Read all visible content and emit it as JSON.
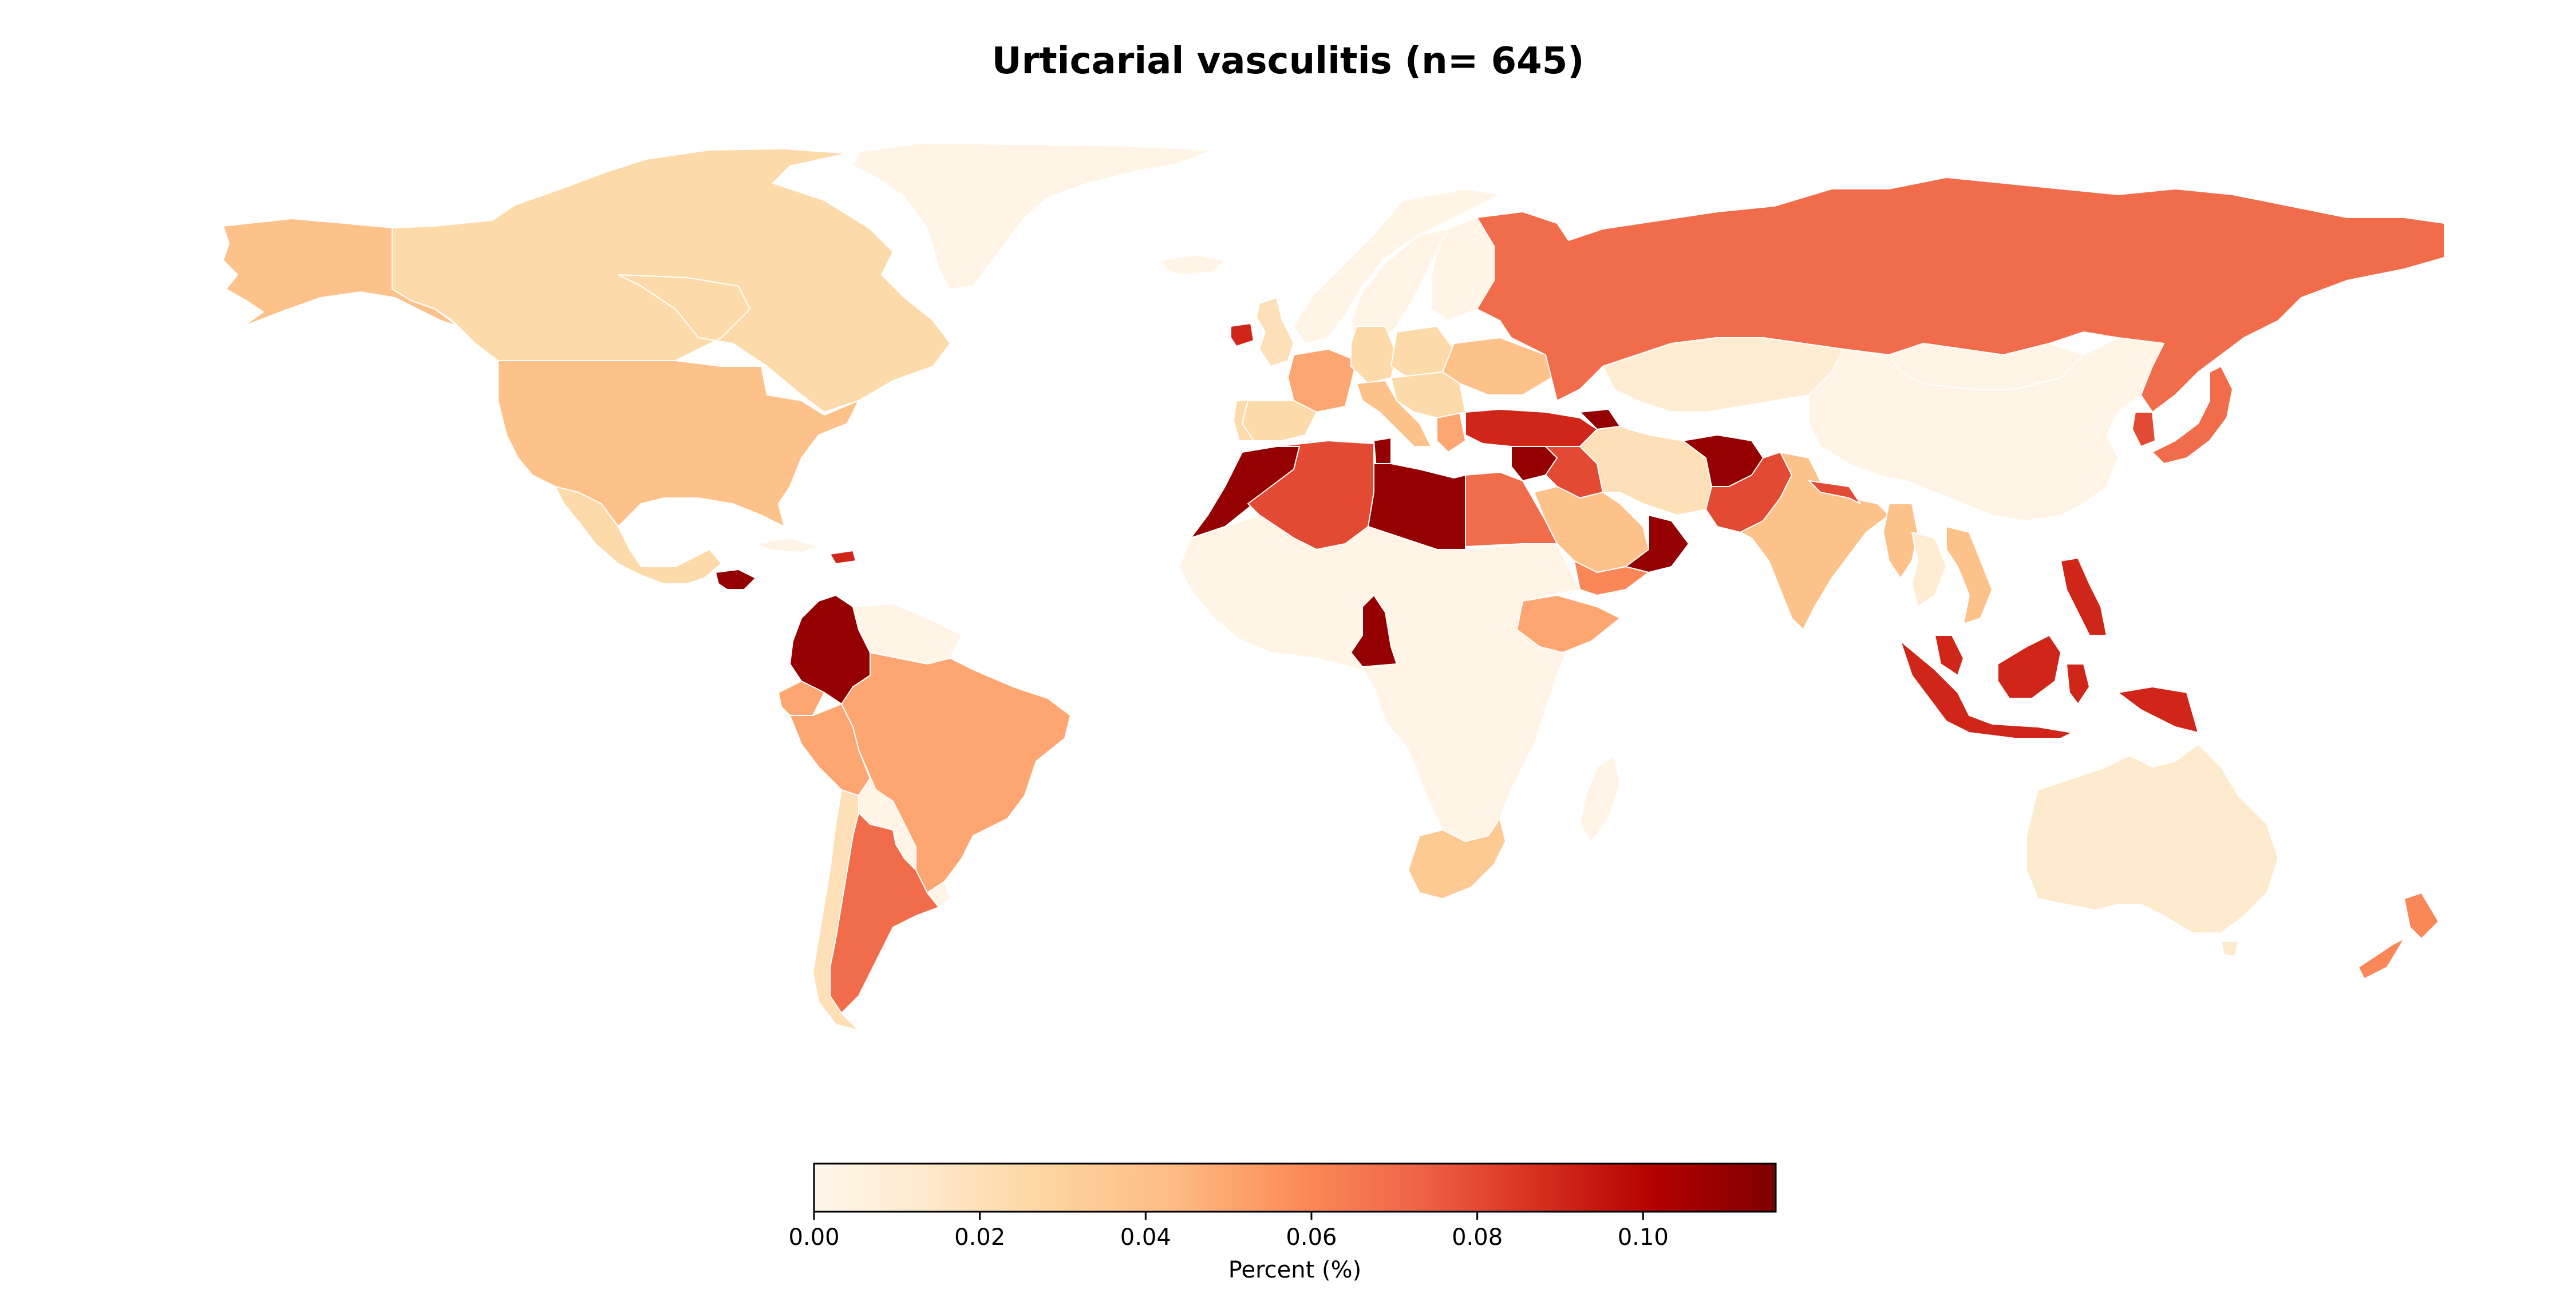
{
  "title": "Urticarial vasculitis (n= 645)",
  "colorbar": {
    "label": "Percent (%)",
    "cmap": "OrRd",
    "vmin": 0.0,
    "vmax": 0.116,
    "ticks": [
      {
        "value": 0.0,
        "label": "0.00"
      },
      {
        "value": 0.02,
        "label": "0.02"
      },
      {
        "value": 0.04,
        "label": "0.04"
      },
      {
        "value": 0.06,
        "label": "0.06"
      },
      {
        "value": 0.08,
        "label": "0.08"
      },
      {
        "value": 0.1,
        "label": "0.10"
      }
    ],
    "stops": [
      {
        "t": 0.0,
        "color": "#fff7ec"
      },
      {
        "t": 0.125,
        "color": "#fee8c8"
      },
      {
        "t": 0.25,
        "color": "#fdd49e"
      },
      {
        "t": 0.375,
        "color": "#fdbb84"
      },
      {
        "t": 0.5,
        "color": "#fc8d59"
      },
      {
        "t": 0.625,
        "color": "#ef6548"
      },
      {
        "t": 0.75,
        "color": "#d7301f"
      },
      {
        "t": 0.875,
        "color": "#b30000"
      },
      {
        "t": 1.0,
        "color": "#7f0000"
      }
    ]
  },
  "chart_data": {
    "type": "choropleth",
    "title": "Urticarial vasculitis (n= 645)",
    "value_label": "Percent (%)",
    "regions": [
      {
        "name": "Greenland",
        "value": 0.003
      },
      {
        "name": "Alaska",
        "value": 0.04
      },
      {
        "name": "Canada",
        "value": 0.025
      },
      {
        "name": "United States",
        "value": 0.04
      },
      {
        "name": "Mexico",
        "value": 0.025
      },
      {
        "name": "Guatemala",
        "value": 0.11
      },
      {
        "name": "Cuba",
        "value": 0.003
      },
      {
        "name": "Dominican Republic",
        "value": 0.09
      },
      {
        "name": "Colombia",
        "value": 0.11
      },
      {
        "name": "Venezuela",
        "value": 0.003
      },
      {
        "name": "Ecuador",
        "value": 0.05
      },
      {
        "name": "Peru",
        "value": 0.05
      },
      {
        "name": "Brazil",
        "value": 0.05
      },
      {
        "name": "Bolivia",
        "value": 0.003
      },
      {
        "name": "Paraguay",
        "value": 0.003
      },
      {
        "name": "Uruguay",
        "value": 0.003
      },
      {
        "name": "Chile",
        "value": 0.02
      },
      {
        "name": "Argentina",
        "value": 0.07
      },
      {
        "name": "Iceland",
        "value": 0.003
      },
      {
        "name": "Norway",
        "value": 0.003
      },
      {
        "name": "Sweden",
        "value": 0.003
      },
      {
        "name": "Finland",
        "value": 0.003
      },
      {
        "name": "Ireland",
        "value": 0.09
      },
      {
        "name": "United Kingdom",
        "value": 0.02
      },
      {
        "name": "France",
        "value": 0.05
      },
      {
        "name": "Spain",
        "value": 0.025
      },
      {
        "name": "Portugal",
        "value": 0.025
      },
      {
        "name": "Germany",
        "value": 0.025
      },
      {
        "name": "Poland",
        "value": 0.025
      },
      {
        "name": "Ukraine",
        "value": 0.04
      },
      {
        "name": "Italy",
        "value": 0.04
      },
      {
        "name": "Greece",
        "value": 0.05
      },
      {
        "name": "Turkey",
        "value": 0.09
      },
      {
        "name": "Russia",
        "value": 0.07
      },
      {
        "name": "Kazakhstan",
        "value": 0.01
      },
      {
        "name": "Mongolia",
        "value": 0.003
      },
      {
        "name": "China",
        "value": 0.003
      },
      {
        "name": "Japan",
        "value": 0.07
      },
      {
        "name": "South Korea",
        "value": 0.08
      },
      {
        "name": "Syria",
        "value": 0.11
      },
      {
        "name": "Iraq",
        "value": 0.08
      },
      {
        "name": "Azerbaijan",
        "value": 0.11
      },
      {
        "name": "Iran",
        "value": 0.02
      },
      {
        "name": "Afghanistan",
        "value": 0.11
      },
      {
        "name": "Pakistan",
        "value": 0.08
      },
      {
        "name": "India",
        "value": 0.04
      },
      {
        "name": "Nepal",
        "value": 0.08
      },
      {
        "name": "Saudi Arabia",
        "value": 0.04
      },
      {
        "name": "Oman",
        "value": 0.11
      },
      {
        "name": "Yemen",
        "value": 0.06
      },
      {
        "name": "Myanmar",
        "value": 0.04
      },
      {
        "name": "Thailand",
        "value": 0.01
      },
      {
        "name": "Vietnam",
        "value": 0.04
      },
      {
        "name": "Philippines",
        "value": 0.09
      },
      {
        "name": "Malaysia",
        "value": 0.09
      },
      {
        "name": "Indonesia",
        "value": 0.09
      },
      {
        "name": "Papua New Guinea",
        "value": 0.09
      },
      {
        "name": "Morocco",
        "value": 0.11
      },
      {
        "name": "Algeria",
        "value": 0.08
      },
      {
        "name": "Tunisia",
        "value": 0.11
      },
      {
        "name": "Libya",
        "value": 0.11
      },
      {
        "name": "Egypt",
        "value": 0.07
      },
      {
        "name": "Ethiopia",
        "value": 0.05
      },
      {
        "name": "Cameroon",
        "value": 0.11
      },
      {
        "name": "Sub-Saharan Africa",
        "value": 0.003
      },
      {
        "name": "Madagascar",
        "value": 0.003
      },
      {
        "name": "South Africa",
        "value": 0.035
      },
      {
        "name": "Australia",
        "value": 0.012
      },
      {
        "name": "New Zealand",
        "value": 0.06
      }
    ]
  }
}
